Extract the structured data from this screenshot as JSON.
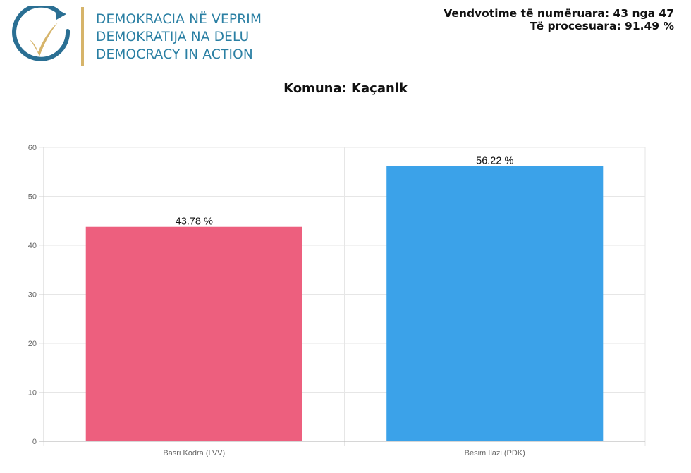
{
  "header": {
    "org_lines": [
      "DEMOKRACIA NË VEPRIM",
      "DEMOKRATIJA NA DELU",
      "DEMOCRACY IN ACTION"
    ],
    "stat_counted": "Vendvotime të numëruara: 43 nga 47",
    "stat_processed": "Të procesuara: 91.49 %"
  },
  "colors": {
    "logo_ring": "#2a6f93",
    "logo_check": "#d6b46a",
    "org_text": "#2a7fa3"
  },
  "chart_data": {
    "type": "bar",
    "title": "Komuna: Kaçanik",
    "categories": [
      "Basri Kodra (LVV)",
      "Besim Ilazi (PDK)"
    ],
    "values": [
      43.78,
      56.22
    ],
    "data_labels": [
      "43.78 %",
      "56.22 %"
    ],
    "colors": [
      "#ed5f7e",
      "#3ba2e9"
    ],
    "ylim": [
      0,
      60
    ],
    "yticks": [
      0,
      10,
      20,
      30,
      40,
      50,
      60
    ],
    "grid": true,
    "xlabel": "",
    "ylabel": ""
  }
}
